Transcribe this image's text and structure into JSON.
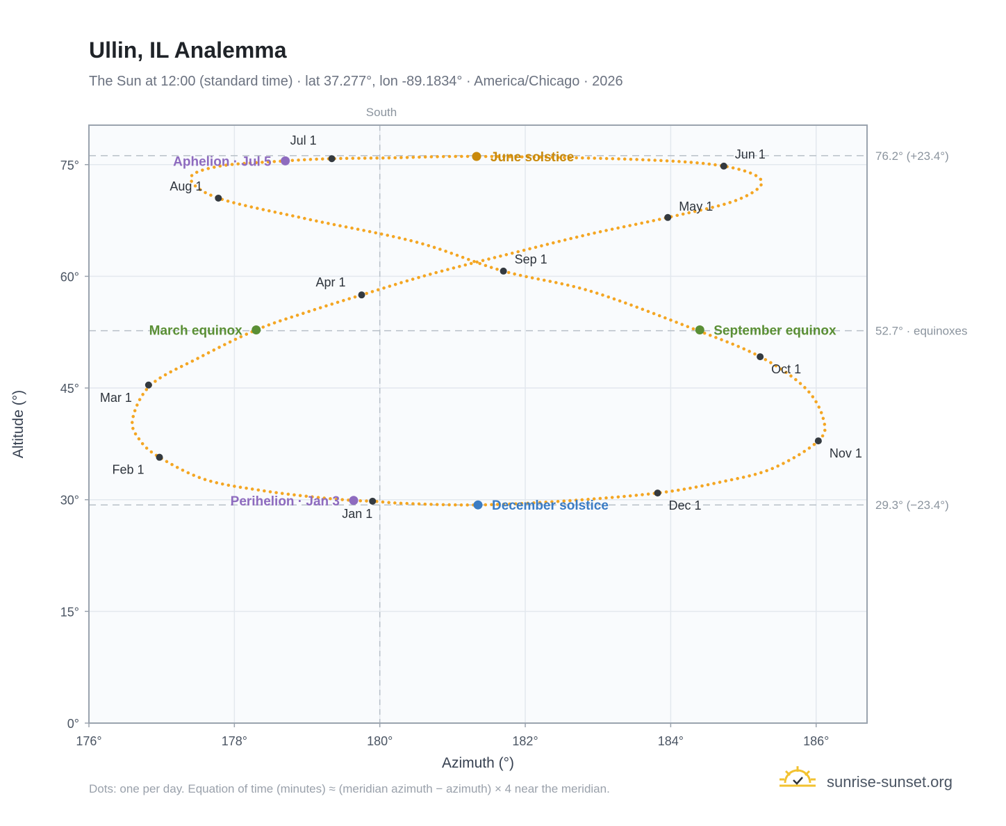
{
  "header": {
    "title": "Ullin, IL Analemma",
    "subtitle": "The Sun at 12:00 (standard time) · lat 37.277°, lon -89.1834° · America/Chicago · 2026"
  },
  "footer": {
    "note": "Dots: one per day. Equation of time (minutes) ≈ (meridian azimuth − azimuth) × 4 near the meridian.",
    "brand": "sunrise-sunset.org"
  },
  "chart_data": {
    "type": "scatter",
    "xlabel": "Azimuth (°)",
    "ylabel": "Altitude (°)",
    "xlim": [
      176,
      186.7
    ],
    "ylim": [
      0,
      80.3
    ],
    "xticks": [
      176,
      178,
      180,
      182,
      184,
      186
    ],
    "xtick_labels": [
      "176°",
      "178°",
      "180°",
      "182°",
      "184°",
      "186°"
    ],
    "yticks": [
      0,
      15,
      30,
      45,
      60,
      75
    ],
    "ytick_labels": [
      "0°",
      "15°",
      "30°",
      "45°",
      "60°",
      "75°"
    ],
    "grid": true,
    "meridian": {
      "azimuth": 180,
      "label": "South"
    },
    "reference_lines": [
      {
        "altitude": 76.2,
        "label": "76.2° (+23.4°)"
      },
      {
        "altitude": 52.7,
        "label": "52.7° · equinoxes"
      },
      {
        "altitude": 29.3,
        "label": "29.3° (−23.4°)"
      }
    ],
    "series": [
      {
        "points": [
          [
            179.9,
            29.8
          ],
          [
            179.64,
            29.9
          ],
          [
            179.15,
            30.3
          ],
          [
            178.4,
            31.2
          ],
          [
            177.6,
            32.7
          ],
          [
            176.97,
            35.7
          ],
          [
            176.7,
            38.0
          ],
          [
            176.6,
            40.8
          ],
          [
            176.85,
            45.4
          ],
          [
            177.5,
            49.0
          ],
          [
            178.3,
            52.8
          ],
          [
            179.0,
            55.2
          ],
          [
            179.75,
            57.5
          ],
          [
            180.7,
            60.3
          ],
          [
            181.9,
            63.3
          ],
          [
            182.9,
            65.7
          ],
          [
            183.96,
            67.9
          ],
          [
            184.9,
            70.2
          ],
          [
            185.25,
            72.8
          ],
          [
            184.73,
            74.8
          ],
          [
            183.5,
            75.7
          ],
          [
            181.33,
            76.1
          ],
          [
            180.1,
            75.9
          ],
          [
            179.34,
            75.8
          ],
          [
            178.7,
            75.5
          ],
          [
            177.8,
            74.8
          ],
          [
            177.4,
            73.2
          ],
          [
            177.78,
            70.5
          ],
          [
            179.0,
            67.7
          ],
          [
            180.5,
            64.6
          ],
          [
            181.7,
            60.7
          ],
          [
            182.9,
            58.0
          ],
          [
            184.35,
            52.8
          ],
          [
            185.23,
            49.2
          ],
          [
            185.85,
            45.0
          ],
          [
            186.1,
            40.8
          ],
          [
            186.03,
            37.9
          ],
          [
            185.4,
            34.2
          ],
          [
            184.7,
            32.4
          ],
          [
            183.82,
            30.9
          ],
          [
            182.5,
            29.8
          ],
          [
            181.35,
            29.3
          ],
          [
            180.35,
            29.5
          ],
          [
            179.9,
            29.8
          ]
        ]
      }
    ],
    "month_markers": [
      {
        "label": "Jan 1",
        "azimuth": 179.9,
        "altitude": 29.8
      },
      {
        "label": "Feb 1",
        "azimuth": 176.97,
        "altitude": 35.7
      },
      {
        "label": "Mar 1",
        "azimuth": 176.82,
        "altitude": 45.4
      },
      {
        "label": "Apr 1",
        "azimuth": 179.75,
        "altitude": 57.5
      },
      {
        "label": "May 1",
        "azimuth": 183.96,
        "altitude": 67.9
      },
      {
        "label": "Jun 1",
        "azimuth": 184.73,
        "altitude": 74.8
      },
      {
        "label": "Jul 1",
        "azimuth": 179.34,
        "altitude": 75.8
      },
      {
        "label": "Aug 1",
        "azimuth": 177.78,
        "altitude": 70.5
      },
      {
        "label": "Sep 1",
        "azimuth": 181.7,
        "altitude": 60.7
      },
      {
        "label": "Oct 1",
        "azimuth": 185.23,
        "altitude": 49.2
      },
      {
        "label": "Nov 1",
        "azimuth": 186.03,
        "altitude": 37.9
      },
      {
        "label": "Dec 1",
        "azimuth": 183.82,
        "altitude": 30.9
      }
    ],
    "events": [
      {
        "label": "June solstice",
        "azimuth": 181.33,
        "altitude": 76.1,
        "color": "#c98a0c"
      },
      {
        "label": "December solstice",
        "azimuth": 181.35,
        "altitude": 29.3,
        "color": "#3b7cc4"
      },
      {
        "label": "March equinox",
        "azimuth": 178.3,
        "altitude": 52.8,
        "color": "#5a8f35"
      },
      {
        "label": "September equinox",
        "azimuth": 184.4,
        "altitude": 52.8,
        "color": "#5a8f35"
      },
      {
        "label": "Aphelion · Jul 5",
        "azimuth": 178.7,
        "altitude": 75.5,
        "color": "#8e6bbf"
      },
      {
        "label": "Perihelion · Jan 3",
        "azimuth": 179.64,
        "altitude": 29.9,
        "color": "#8e6bbf"
      }
    ],
    "colors": {
      "path": "#f4a623",
      "month_marker": "#343a40",
      "grid": "#e3e8ee",
      "frame": "#9aa3ae",
      "plot_bg": "#f9fbfd",
      "reference": "#b8c0c8"
    }
  }
}
